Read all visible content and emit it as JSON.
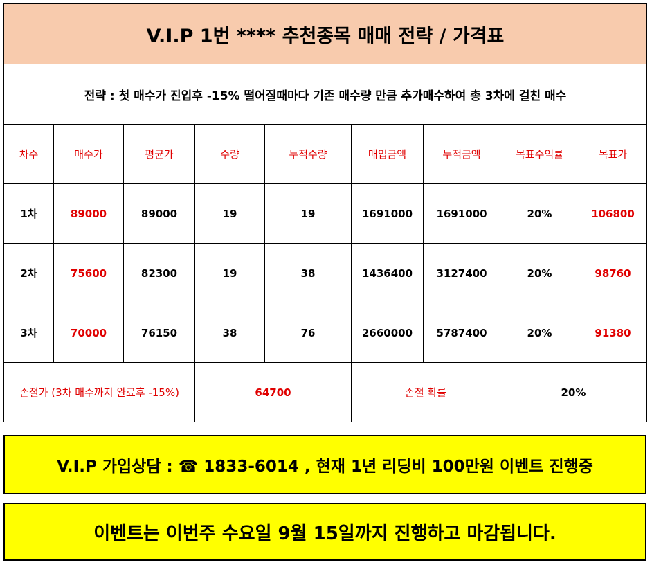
{
  "title": "V.I.P 1번 **** 추천종목  매매 전략 / 가격표",
  "strategy": "전략 : 첫 매수가 진입후 -15% 떨어질때마다 기존 매수량 만큼 추가매수하여 총 3차에 걸친 매수",
  "headers": [
    "차수",
    "매수가",
    "평균가",
    "수량",
    "누적수량",
    "매입금액",
    "누적금액",
    "목표수익률",
    "목표가"
  ],
  "rows": [
    [
      "1차",
      "89000",
      "89000",
      "19",
      "19",
      "1691000",
      "1691000",
      "20%",
      "106800"
    ],
    [
      "2차",
      "75600",
      "82300",
      "19",
      "38",
      "1436400",
      "3127400",
      "20%",
      "98760"
    ],
    [
      "3차",
      "70000",
      "76150",
      "38",
      "76",
      "2660000",
      "5787400",
      "20%",
      "91380"
    ]
  ],
  "stoploss": {
    "label": "손절가 (3차 매수까지 완료후 -15%)",
    "price": "64700",
    "prob_label": "손절 확률",
    "prob_value": "20%"
  },
  "banner1": "V.I.P 가입상담  : ☎ 1833-6014 , 현재 1년 리딩비 100만원 이벤트 진행중",
  "banner2": "이벤트는 이번주 수요일 9월 15일까지 진행하고 마감됩니다.",
  "colors": {
    "title_bg": "#f8cbad",
    "accent_red": "#e00000",
    "banner_bg": "#ffff00"
  }
}
